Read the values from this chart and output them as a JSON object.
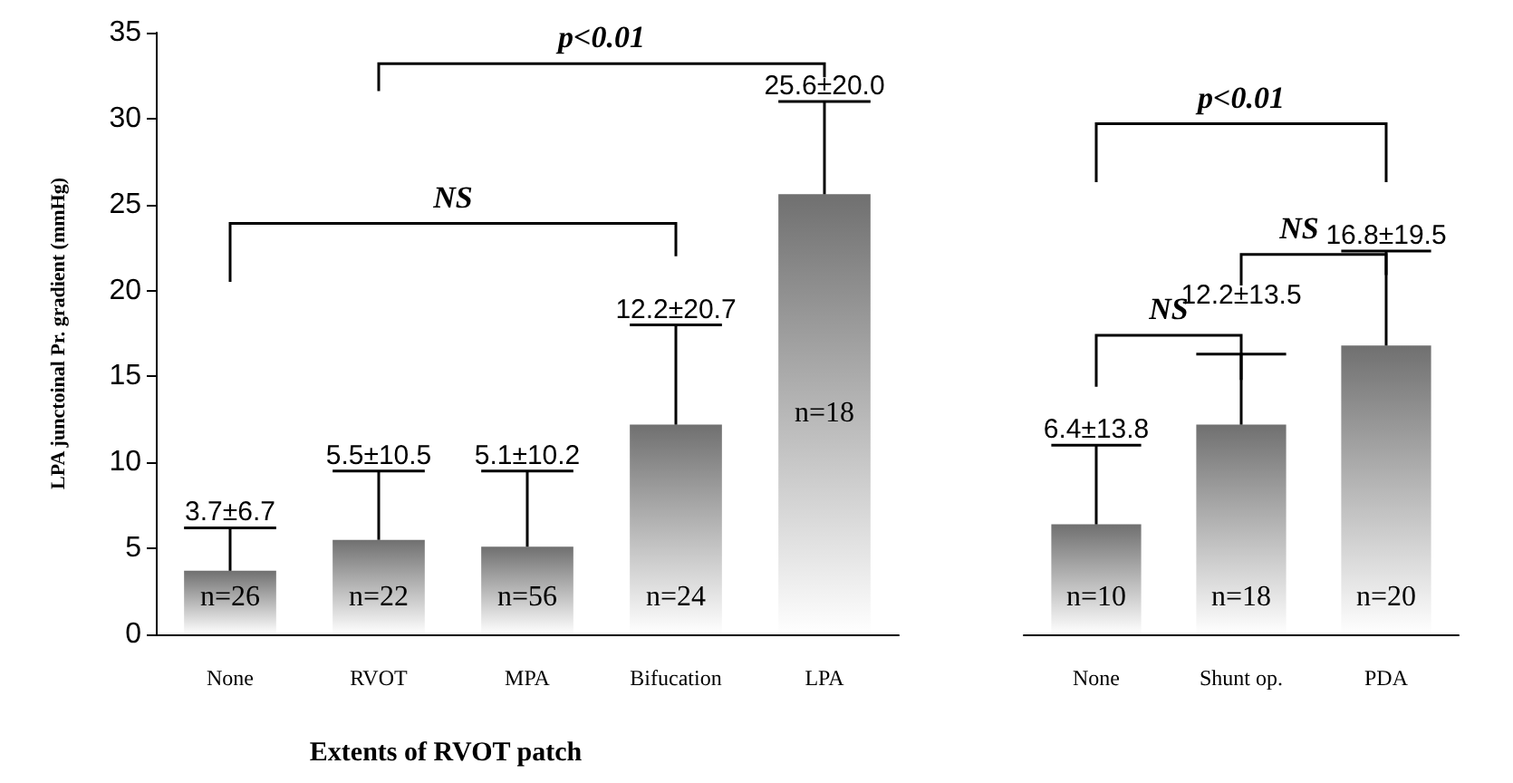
{
  "chart_data": [
    {
      "type": "bar",
      "categories": [
        "None",
        "RVOT",
        "MPA",
        "Bifucation",
        "LPA"
      ],
      "values": [
        3.7,
        5.5,
        5.1,
        12.2,
        25.6
      ],
      "color": "#707070",
      "errors": [
        [
          3.7,
          6.2
        ],
        [
          5.5,
          9.5
        ],
        [
          5.1,
          9.5
        ],
        [
          12.2,
          18.0
        ],
        [
          25.6,
          31.0
        ]
      ],
      "ylim": [
        0,
        35
      ],
      "yticks": [
        0,
        5,
        10,
        15,
        20,
        25,
        30,
        35
      ],
      "ylabel": "LPA junctoinal Pr. gradient (mmHg)",
      "xlabel": "Extents of RVOT patch",
      "grid": false,
      "annotations": [
        "NS",
        "p<0.01",
        "n=26",
        "n=22",
        "n=56",
        "n=24",
        "n=18",
        "3.7±6.7",
        "5.5±10.5",
        "5.1±10.2",
        "12.2±20.7",
        "25.6±20.0"
      ]
    },
    {
      "type": "bar",
      "categories": [
        "None",
        "Shunt op.",
        "PDA"
      ],
      "values": [
        6.4,
        12.2,
        16.8
      ],
      "color": "#707070",
      "errors": [
        [
          6.4,
          11.0
        ],
        [
          12.2,
          16.3
        ],
        [
          16.8,
          22.3
        ]
      ],
      "ylim": [
        0,
        35
      ],
      "yticks": [
        0,
        5,
        10,
        15,
        20,
        25,
        30,
        35
      ],
      "tick_labels": "x",
      "grid": false,
      "annotations": [
        "p<0.01",
        "NS",
        "NS",
        "n=10",
        "n=18",
        "n=20",
        "6.4±13.8",
        "12.2±13.5",
        "16.8±19.5"
      ]
    }
  ]
}
